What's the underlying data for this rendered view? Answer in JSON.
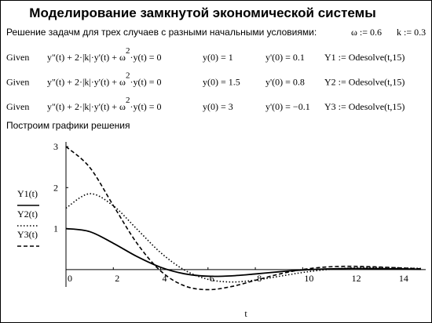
{
  "header": {
    "title": "Моделирование замкнутой экономической системы"
  },
  "intro": {
    "text": "Решение задачм для трех случаев с разными начальными условиями:",
    "params": [
      "ω := 0.6",
      "k := 0.3"
    ]
  },
  "equations": [
    {
      "given": "Given",
      "lhs": "y\"(t) + 2·|k|·y'(t) + ω",
      "power": "2",
      "rhs": "·y(t) = 0",
      "init1": "y(0) = 1",
      "init2": "y'(0) = 0.1",
      "solve": "Y1 := Odesolve(t,15)"
    },
    {
      "given": "Given",
      "lhs": "y\"(t) + 2·|k|·y'(t) + ω",
      "power": "2",
      "rhs": "·y(t) = 0",
      "init1": "y(0) = 1.5",
      "init2": "y'(0) = 0.8",
      "solve": "Y2 := Odesolve(t,15)"
    },
    {
      "given": "Given",
      "lhs": "y\"(t) + 2·|k|·y'(t) + ω",
      "power": "2",
      "rhs": "·y(t) = 0",
      "init1": "y(0) = 3",
      "init2": "y'(0) = −0.1",
      "solve": "Y3 := Odesolve(t,15)"
    }
  ],
  "plot_caption": "Построим графики решения",
  "chart_data": {
    "type": "line",
    "xlabel": "t",
    "x": [
      0,
      1,
      2,
      3,
      4,
      5,
      6,
      7,
      8,
      9,
      10,
      11,
      12,
      13,
      14,
      15
    ],
    "series": [
      {
        "name": "Y1(t)",
        "color": "#000000",
        "style": "solid",
        "values": [
          1,
          0.926,
          0.642,
          0.318,
          0.056,
          -0.102,
          -0.162,
          -0.153,
          -0.107,
          -0.054,
          -0.011,
          0.016,
          0.026,
          0.025,
          0.018,
          0.009
        ]
      },
      {
        "name": "Y2(t)",
        "color": "#000000",
        "style": "dotted",
        "values": [
          1.5,
          1.85,
          1.556,
          0.986,
          0.413,
          -0.009,
          -0.238,
          -0.303,
          -0.257,
          -0.165,
          -0.071,
          -0.001,
          0.038,
          0.049,
          0.043,
          0.028
        ]
      },
      {
        "name": "Y3(t)",
        "color": "#000000",
        "style": "dashed",
        "values": [
          3,
          2.496,
          1.563,
          0.641,
          -0.034,
          -0.395,
          -0.49,
          -0.413,
          -0.262,
          -0.111,
          0.002,
          0.063,
          0.08,
          0.068,
          0.044,
          0.019
        ]
      }
    ],
    "xlim": [
      0,
      15
    ],
    "ylim": [
      -0.5,
      3
    ],
    "xticks": [
      0,
      2,
      4,
      6,
      8,
      10,
      12,
      14
    ],
    "yticks": [
      1,
      2,
      3
    ]
  }
}
